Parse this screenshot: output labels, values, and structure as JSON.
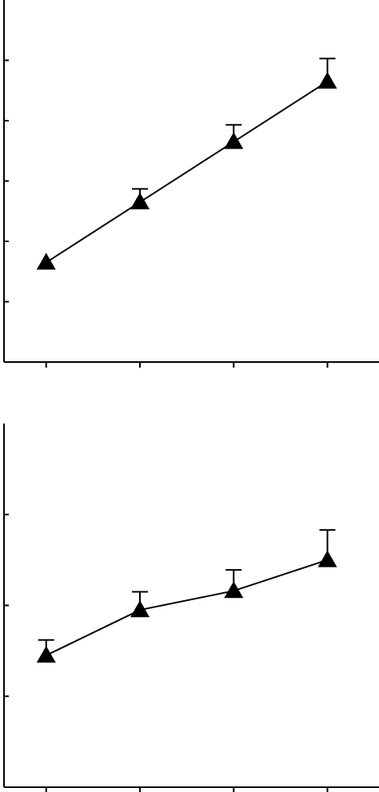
{
  "colors": {
    "ink": "#000000",
    "background": "#ffffff"
  },
  "chart_data": [
    {
      "type": "line",
      "title": "",
      "xlabel": "",
      "ylabel": "",
      "marker": "triangle-filled",
      "error_bars": "upper-only",
      "tick_labels_shown": false,
      "x": [
        1,
        2,
        3,
        4
      ],
      "xlim": [
        0.55,
        4.55
      ],
      "ylim": [
        0,
        6
      ],
      "y_ticks": [
        1,
        2,
        3,
        4,
        5
      ],
      "series": [
        {
          "values": [
            1.65,
            2.65,
            3.65,
            4.65
          ],
          "error_upper": [
            0,
            0.22,
            0.28,
            0.38
          ]
        }
      ]
    },
    {
      "type": "line",
      "title": "",
      "xlabel": "",
      "ylabel": "",
      "marker": "triangle-filled",
      "error_bars": "upper-only",
      "tick_labels_shown": false,
      "x": [
        1,
        2,
        3,
        4
      ],
      "xlim": [
        0.55,
        4.55
      ],
      "ylim": [
        0,
        4
      ],
      "y_ticks": [
        1,
        2,
        3
      ],
      "series": [
        {
          "values": [
            1.45,
            1.95,
            2.16,
            2.5
          ],
          "error_upper": [
            0.17,
            0.2,
            0.23,
            0.33
          ]
        }
      ]
    }
  ]
}
